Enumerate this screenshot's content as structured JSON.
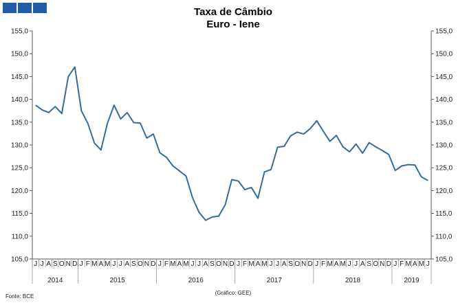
{
  "chart_data": {
    "type": "line",
    "title": "Taxa de Câmbio",
    "subtitle": "Euro - Iene",
    "source": "Fonte: BCE",
    "credit": "(Gráfico: GEE)",
    "ylim": [
      105,
      155
    ],
    "y_ticks": [
      "105,0",
      "110,0",
      "115,0",
      "120,0",
      "125,0",
      "130,0",
      "135,0",
      "140,0",
      "145,0",
      "150,0",
      "155,0"
    ],
    "grid": false,
    "line_color": "#2e6ca4",
    "x_month_labels": [
      "J",
      "J",
      "A",
      "S",
      "O",
      "N",
      "D",
      "J",
      "F",
      "M",
      "A",
      "M",
      "J",
      "J",
      "A",
      "S",
      "O",
      "N",
      "D",
      "J",
      "F",
      "M",
      "A",
      "M",
      "J",
      "J",
      "A",
      "S",
      "O",
      "N",
      "D",
      "J",
      "F",
      "M",
      "A",
      "M",
      "J",
      "J",
      "A",
      "S",
      "O",
      "N",
      "D",
      "J",
      "F",
      "M",
      "A",
      "M",
      "J",
      "J",
      "A",
      "S",
      "O",
      "N",
      "D",
      "J",
      "F",
      "M",
      "A",
      "M",
      "J"
    ],
    "year_groups": [
      {
        "label": "2014",
        "start": 0,
        "count": 7
      },
      {
        "label": "2015",
        "start": 7,
        "count": 12
      },
      {
        "label": "2016",
        "start": 19,
        "count": 12
      },
      {
        "label": "2017",
        "start": 31,
        "count": 12
      },
      {
        "label": "2018",
        "start": 43,
        "count": 12
      },
      {
        "label": "2019",
        "start": 55,
        "count": 6
      }
    ],
    "series": [
      {
        "values": [
          138.7,
          137.7,
          137.1,
          138.4,
          136.9,
          145.0,
          147.1,
          137.5,
          134.7,
          130.4,
          128.9,
          134.8,
          138.7,
          135.7,
          137.1,
          134.9,
          134.8,
          131.5,
          132.4,
          128.3,
          127.3,
          125.4,
          124.3,
          123.2,
          118.4,
          115.2,
          113.5,
          114.2,
          114.4,
          116.9,
          122.4,
          122.1,
          120.2,
          120.7,
          118.3,
          124.1,
          124.6,
          129.5,
          129.7,
          132.0,
          132.8,
          132.4,
          133.6,
          135.3,
          133.0,
          130.8,
          132.1,
          129.6,
          128.5,
          130.2,
          128.2,
          130.5,
          129.6,
          128.8,
          127.9,
          124.4,
          125.4,
          125.7,
          125.6,
          123.0,
          122.2
        ]
      }
    ]
  }
}
